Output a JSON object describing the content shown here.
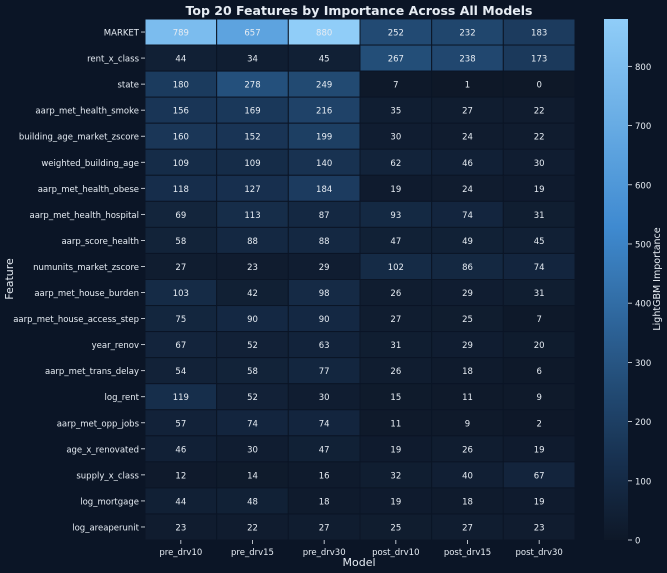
{
  "chart_data": {
    "type": "heatmap",
    "title": "Top 20 Features by Importance Across All Models",
    "xlabel": "Model",
    "ylabel": "Feature",
    "colorbar_label": "LightGBM Importance",
    "colorbar_ticks": [
      0,
      100,
      200,
      300,
      400,
      500,
      600,
      700,
      800
    ],
    "colorbar_range": [
      0,
      880
    ],
    "colormap": [
      "#0e1828",
      "#17304f",
      "#234d77",
      "#3f8ad0",
      "#90cdf8"
    ],
    "columns": [
      "pre_drv10",
      "pre_drv15",
      "pre_drv30",
      "post_drv10",
      "post_drv15",
      "post_drv30"
    ],
    "rows": [
      "MARKET",
      "rent_x_class",
      "state",
      "aarp_met_health_smoke",
      "building_age_market_zscore",
      "weighted_building_age",
      "aarp_met_health_obese",
      "aarp_met_health_hospital",
      "aarp_score_health",
      "numunits_market_zscore",
      "aarp_met_house_burden",
      "aarp_met_house_access_step",
      "year_renov",
      "aarp_met_trans_delay",
      "log_rent",
      "aarp_met_opp_jobs",
      "age_x_renovated",
      "supply_x_class",
      "log_mortgage",
      "log_areaperunit"
    ],
    "values": [
      [
        789,
        657,
        880,
        252,
        232,
        183
      ],
      [
        44,
        34,
        45,
        267,
        238,
        173
      ],
      [
        180,
        278,
        249,
        7,
        1,
        0
      ],
      [
        156,
        169,
        216,
        35,
        27,
        22
      ],
      [
        160,
        152,
        199,
        30,
        24,
        22
      ],
      [
        109,
        109,
        140,
        62,
        46,
        30
      ],
      [
        118,
        127,
        184,
        19,
        24,
        19
      ],
      [
        69,
        113,
        87,
        93,
        74,
        31
      ],
      [
        58,
        88,
        88,
        47,
        49,
        45
      ],
      [
        27,
        23,
        29,
        102,
        86,
        74
      ],
      [
        103,
        42,
        98,
        26,
        29,
        31
      ],
      [
        75,
        90,
        90,
        27,
        25,
        7
      ],
      [
        67,
        52,
        63,
        31,
        29,
        20
      ],
      [
        54,
        58,
        77,
        26,
        18,
        6
      ],
      [
        119,
        52,
        30,
        15,
        11,
        9
      ],
      [
        57,
        74,
        74,
        11,
        9,
        2
      ],
      [
        46,
        30,
        47,
        19,
        26,
        19
      ],
      [
        12,
        14,
        16,
        32,
        40,
        67
      ],
      [
        44,
        48,
        18,
        19,
        18,
        19
      ],
      [
        23,
        22,
        27,
        25,
        27,
        23
      ]
    ]
  }
}
